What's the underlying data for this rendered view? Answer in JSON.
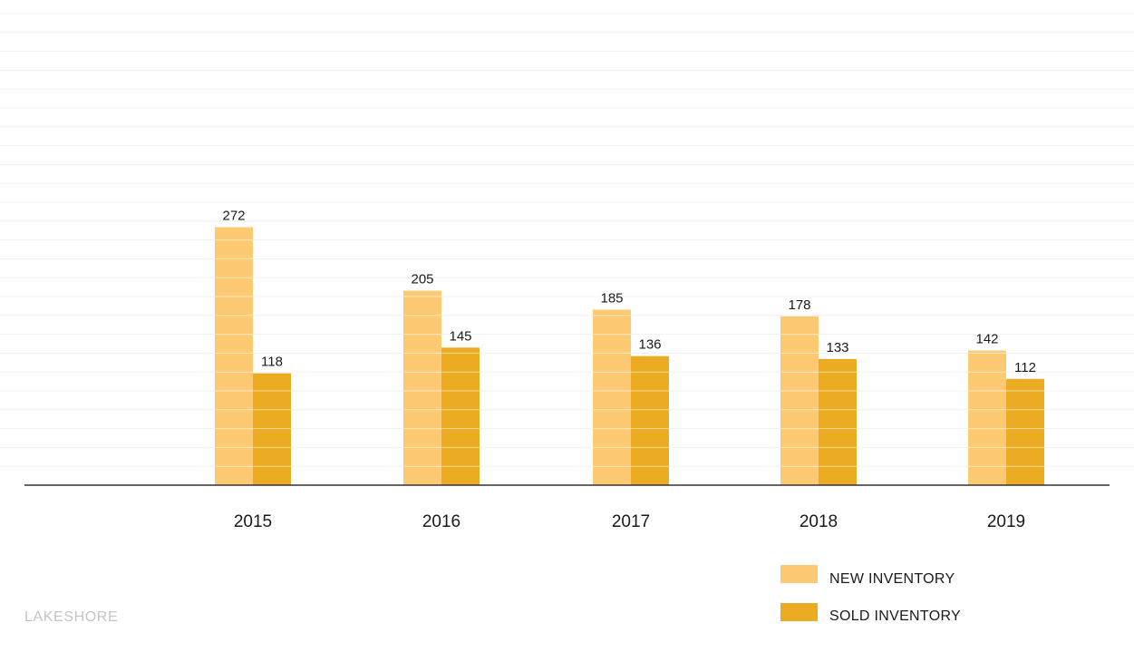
{
  "chart_data": {
    "type": "bar",
    "categories": [
      "2015",
      "2016",
      "2017",
      "2018",
      "2019"
    ],
    "series": [
      {
        "name": "NEW INVENTORY",
        "values": [
          272,
          205,
          185,
          178,
          142
        ],
        "color": "#fdca73"
      },
      {
        "name": "SOLD INVENTORY",
        "values": [
          118,
          145,
          136,
          133,
          112
        ],
        "color": "#ebab22"
      }
    ],
    "ylim": [
      0,
      500
    ],
    "grid": true,
    "legend_position": "bottom-right",
    "title": "",
    "xlabel": "",
    "ylabel": ""
  },
  "brand": {
    "text": "LAKESHORE"
  },
  "colors": {
    "axis": "#333333",
    "grid": "#f1f1f1",
    "brand": "#c4c4c4"
  }
}
